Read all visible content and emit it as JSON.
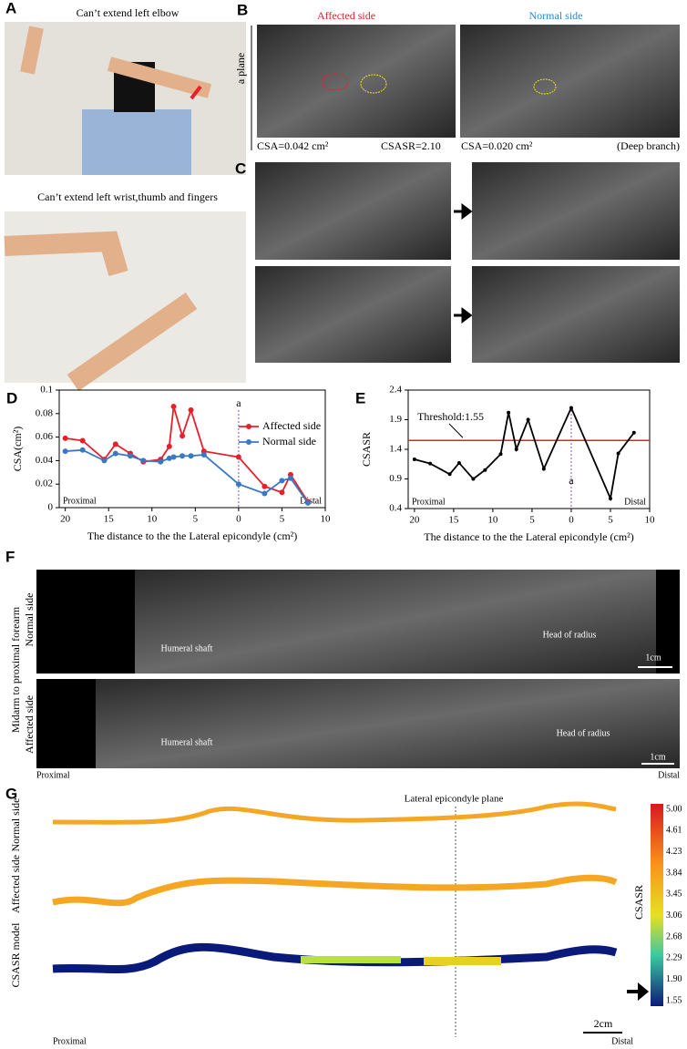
{
  "panels": {
    "A": {
      "label": "A",
      "top_caption": "Can’t extend left elbow",
      "bottom_caption": "Can’t extend left wrist,thumb and fingers"
    },
    "B": {
      "label": "B",
      "affected_title": "Affected side",
      "normal_title": "Normal side",
      "plane_label": "a plane",
      "affected_csa": "CSA=0.042 cm²",
      "csasr": "CSASR=2.10",
      "normal_csa": "CSA=0.020 cm²",
      "branch": "(Deep branch)"
    },
    "C": {
      "label": "C"
    },
    "F": {
      "label": "F",
      "side_title": "Midarm to proximal forearm",
      "normal_side": "Normal side",
      "affected_side": "Affected side",
      "normal_shaft": "Humeral shaft",
      "normal_head": "Head of radius",
      "normal_scale": "1cm",
      "affected_shaft": "Humeral shaft",
      "affected_head": "Head of radius",
      "affected_scale": "1cm",
      "proximal": "Proximal",
      "distal": "Distal"
    },
    "G": {
      "label": "G",
      "plane_label": "Lateral epicondyle plane",
      "normal_side": "Normal side",
      "affected_side": "Affected side",
      "model": "CSASR model",
      "proximal": "Proximal",
      "distal": "Distal",
      "scale": "2cm",
      "colorbar_title": "CSASR",
      "colorbar_labels": [
        "5.00",
        "4.61",
        "4.23",
        "3.84",
        "3.45",
        "3.06",
        "2.68",
        "2.29",
        "1.90",
        "1.55"
      ]
    }
  },
  "chart_data": [
    {
      "type": "line",
      "panel_label": "D",
      "y_label": "CSA(cm²)",
      "x_label": "The distance to the the Lateral epicondyle (cm²)",
      "proximal_label": "Proximal",
      "distal_label": "Distal",
      "legend": "upper right",
      "marker": {
        "x": 0,
        "label": "a"
      },
      "x": [
        20,
        18,
        15.5,
        14.2,
        12.5,
        11,
        9,
        8,
        7.5,
        6.5,
        5.5,
        4,
        0,
        -3,
        -5,
        -6,
        -8
      ],
      "series": [
        {
          "name": "Affected side",
          "color": "#e8202a",
          "values": [
            0.059,
            0.057,
            0.041,
            0.054,
            0.046,
            0.039,
            0.041,
            0.052,
            0.086,
            0.061,
            0.083,
            0.048,
            0.043,
            0.018,
            0.013,
            0.028,
            0.005
          ]
        },
        {
          "name": "Normal side",
          "color": "#3a78c4",
          "values": [
            0.048,
            0.049,
            0.04,
            0.046,
            0.044,
            0.04,
            0.039,
            0.042,
            0.043,
            0.044,
            0.044,
            0.045,
            0.02,
            0.012,
            0.023,
            0.025,
            0.004
          ]
        }
      ],
      "xlim": [
        20.7,
        -10
      ],
      "xticks": [
        20,
        15,
        10,
        5,
        0,
        {
          "value": -5,
          "label": "5"
        },
        {
          "value": -10,
          "label": "10"
        }
      ],
      "ylim": [
        0,
        0.1
      ],
      "yticks": [
        0,
        0.02,
        0.04,
        0.06,
        0.08,
        0.1
      ]
    },
    {
      "type": "line",
      "panel_label": "E",
      "y_label": "CSASR",
      "x_label": "The distance to the the Lateral epicondyle (cm²)",
      "proximal_label": "Proximal",
      "distal_label": "Distal",
      "marker": {
        "x": 0,
        "label": "a"
      },
      "threshold": {
        "value": 1.55,
        "label": "Threshold:1.55",
        "color": "#e8202a"
      },
      "x": [
        20,
        18,
        15.5,
        14.3,
        12.5,
        11,
        9,
        8,
        7,
        5.5,
        3.5,
        0,
        -5,
        -6,
        -8
      ],
      "color": "#000000",
      "values": [
        1.23,
        1.16,
        0.98,
        1.17,
        0.9,
        1.05,
        1.32,
        2.02,
        1.4,
        1.9,
        1.07,
        2.1,
        0.57,
        1.33,
        1.68
      ],
      "xlim": [
        20.8,
        -10
      ],
      "xticks": [
        20,
        15,
        10,
        5,
        0,
        {
          "value": -5,
          "label": "5"
        },
        {
          "value": -10,
          "label": "10"
        }
      ],
      "ylim": [
        0.4,
        2.4
      ],
      "yticks": [
        0.4,
        0.9,
        1.4,
        1.9,
        2.4
      ]
    }
  ]
}
